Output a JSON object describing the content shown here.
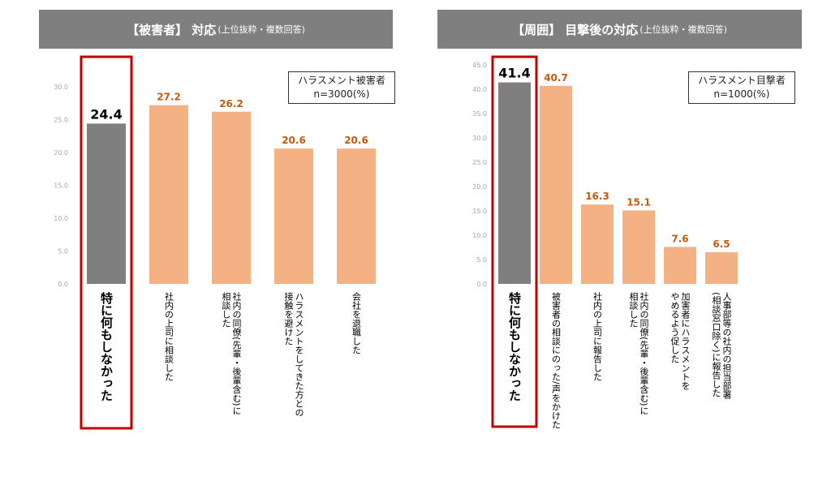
{
  "colors": {
    "header_bg": "#7f7f7f",
    "highlight_bar": "#7f7f7f",
    "bar": "#f4b183",
    "value_text": "#c55a11",
    "frame": "#c00000",
    "axis_text": "#a6a6a6"
  },
  "chart_data": [
    {
      "type": "bar",
      "title": "【被害者】 対応",
      "subtitle": "(上位抜粋・複数回答)",
      "legend_lines": [
        "ハラスメント被害者",
        "n=3000(%)"
      ],
      "ylim": [
        0,
        30
      ],
      "yticks": [
        "0.0",
        "5.0",
        "10.0",
        "15.0",
        "20.0",
        "25.0",
        "30.0"
      ],
      "categories": [
        "特に何もしなかった",
        "社内の上司に相談した",
        "社内の同僚(先輩・後輩含む)に|相談した",
        "ハラスメントをしてきた方との|接触を避けた",
        "会社を退職した"
      ],
      "values": [
        24.4,
        27.2,
        26.2,
        20.6,
        20.6
      ],
      "value_labels": [
        "24.4",
        "27.2",
        "26.2",
        "20.6",
        "20.6"
      ],
      "highlight_index": 0
    },
    {
      "type": "bar",
      "title": "【周囲】 目撃後の対応",
      "subtitle": "(上位抜粋・複数回答)",
      "legend_lines": [
        "ハラスメント目撃者",
        "n=1000(%)"
      ],
      "ylim": [
        0,
        45
      ],
      "yticks": [
        "0.0",
        "5.0",
        "10.0",
        "15.0",
        "20.0",
        "25.0",
        "30.0",
        "35.0",
        "40.0",
        "45.0"
      ],
      "categories": [
        "特に何もしなかった",
        "被害者の相談にのった/声をかけた",
        "社内の上司に報告した",
        "社内の同僚(先輩・後輩含む)に|相談した",
        "加害者にハラスメントを|やめるよう促した",
        "人事部等の社内の担当部署|(相談窓口除く)に報告した"
      ],
      "values": [
        41.4,
        40.7,
        16.3,
        15.1,
        7.6,
        6.5
      ],
      "value_labels": [
        "41.4",
        "40.7",
        "16.3",
        "15.1",
        "7.6",
        "6.5"
      ],
      "highlight_index": 0
    }
  ]
}
